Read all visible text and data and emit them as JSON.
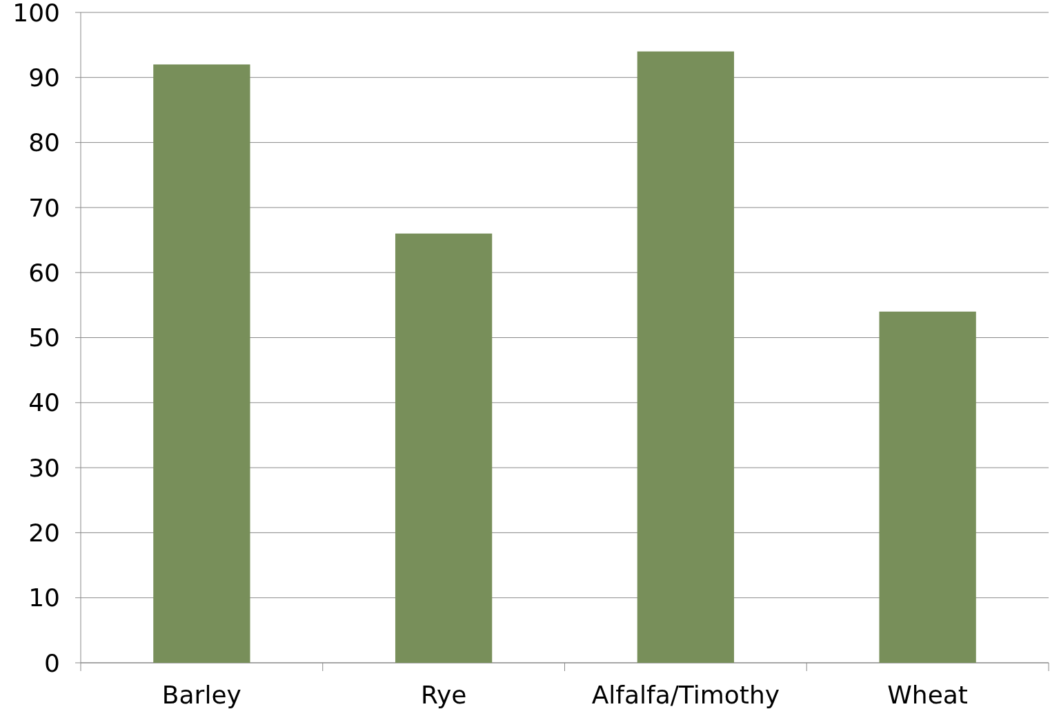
{
  "chart_data": {
    "type": "bar",
    "categories": [
      "Barley",
      "Rye",
      "Alfalfa/Timothy",
      "Wheat"
    ],
    "values": [
      92,
      66,
      94,
      54
    ],
    "color": "#788f5a",
    "ylim": [
      0,
      100
    ],
    "yticks": [
      0,
      10,
      20,
      30,
      40,
      50,
      60,
      70,
      80,
      90,
      100
    ],
    "grid": "y"
  }
}
